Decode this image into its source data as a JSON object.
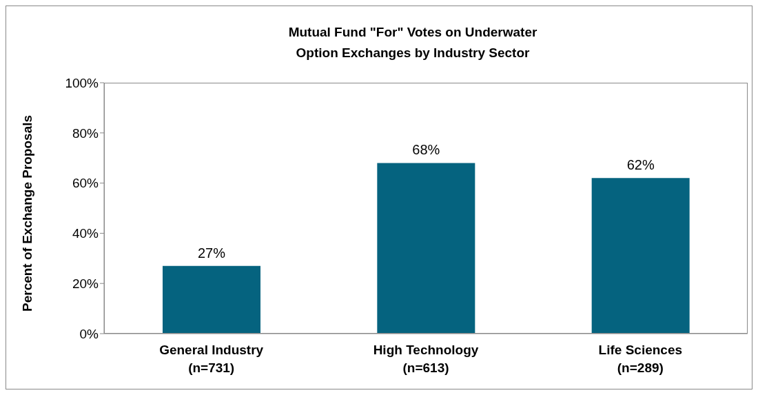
{
  "chart_data": {
    "type": "bar",
    "title": "Mutual Fund \"For\" Votes on Underwater\nOption Exchanges by Industry Sector",
    "ylabel": "Percent of Exchange Proposals",
    "categories": [
      "General Industry\n(n=731)",
      "High Technology\n(n=613)",
      "Life Sciences\n(n=289)"
    ],
    "values": [
      27,
      68,
      62
    ],
    "color": "#05637f",
    "value_labels": [
      "27%",
      "68%",
      "62%"
    ],
    "ylim": [
      0,
      100
    ],
    "yticks": [
      {
        "value": 0,
        "label": "0%"
      },
      {
        "value": 20,
        "label": "20%"
      },
      {
        "value": 40,
        "label": "40%"
      },
      {
        "value": 60,
        "label": "60%"
      },
      {
        "value": 80,
        "label": "80%"
      },
      {
        "value": 100,
        "label": "100%"
      }
    ],
    "grid": false,
    "legend": false
  }
}
